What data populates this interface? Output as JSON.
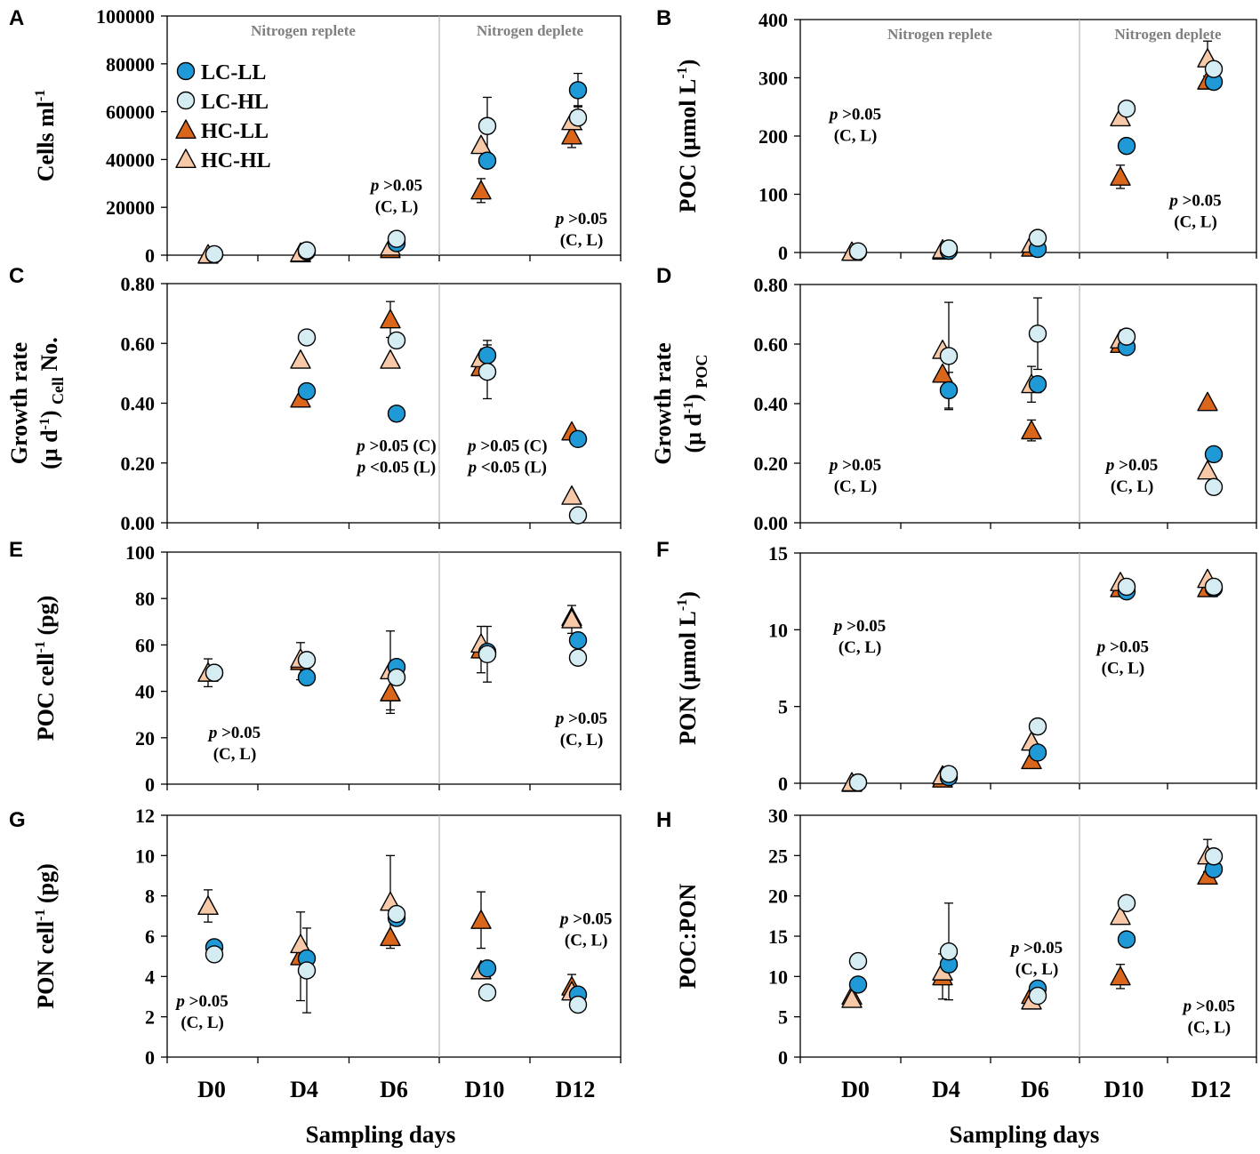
{
  "x_axis": {
    "categories": [
      "D0",
      "D4",
      "D6",
      "D10",
      "D12"
    ],
    "title": "Sampling days"
  },
  "legend": [
    "LC-LL",
    "LC-HL",
    "HC-LL",
    "HC-HL"
  ],
  "series_style": {
    "LC-LL": {
      "shape": "circle",
      "fill": "#1f9ad6"
    },
    "LC-HL": {
      "shape": "circle",
      "fill": "#d6ecf3"
    },
    "HC-LL": {
      "shape": "triangle",
      "fill": "#d9661a"
    },
    "HC-HL": {
      "shape": "triangle",
      "fill": "#f7c9a8"
    }
  },
  "chart_data": [
    {
      "panel": "A",
      "type": "scatter",
      "ylabel_main": "Cells ml",
      "ylabel_sup": "-1",
      "ylim": [
        0,
        100000
      ],
      "yticks": [
        "0",
        "20000",
        "40000",
        "60000",
        "80000",
        "100000"
      ],
      "phase_labels": [
        "Nitrogen replete",
        "Nitrogen deplete"
      ],
      "annotations": [
        {
          "cat": 2,
          "yfrac": 0.27,
          "lines": [
            "p >0.05",
            "(C, L)"
          ]
        },
        {
          "cat": 4,
          "yfrac": 0.13,
          "lines": [
            "p >0.05",
            "(C, L)"
          ]
        }
      ],
      "series": [
        {
          "name": "LC-LL",
          "values": [
            300,
            1500,
            5000,
            39500,
            69000
          ],
          "err": [
            0,
            0,
            0,
            0,
            7000
          ]
        },
        {
          "name": "LC-HL",
          "values": [
            400,
            2000,
            6800,
            54000,
            57500
          ],
          "err": [
            0,
            0,
            0,
            12000,
            5000
          ]
        },
        {
          "name": "HC-LL",
          "values": [
            150,
            700,
            2500,
            27000,
            50000
          ],
          "err": [
            0,
            0,
            0,
            5000,
            5000
          ]
        },
        {
          "name": "HC-HL",
          "values": [
            300,
            1000,
            3500,
            46000,
            56000
          ],
          "err": [
            0,
            0,
            0,
            0,
            0
          ]
        }
      ]
    },
    {
      "panel": "B",
      "type": "scatter",
      "ylabel_main": "POC (µmol L",
      "ylabel_sup": "-1",
      "ylabel_tail": ")",
      "ylim": [
        0,
        400
      ],
      "yticks": [
        "0",
        "100",
        "200",
        "300",
        "400"
      ],
      "phase_labels": [
        "Nitrogen replete",
        "Nitrogen deplete"
      ],
      "annotations": [
        {
          "cat": 0,
          "yfrac": 0.57,
          "lines": [
            "p >0.05",
            "(C, L)"
          ]
        },
        {
          "cat": 3.75,
          "yfrac": 0.2,
          "lines": [
            "p >0.05",
            "(C, L)"
          ]
        }
      ],
      "series": [
        {
          "name": "LC-LL",
          "values": [
            1,
            3,
            6,
            183,
            293
          ],
          "err": [
            0,
            0,
            0,
            0,
            0
          ]
        },
        {
          "name": "LC-HL",
          "values": [
            2,
            7,
            25,
            247,
            315
          ],
          "err": [
            0,
            0,
            0,
            0,
            0
          ]
        },
        {
          "name": "HC-LL",
          "values": [
            1,
            3,
            8,
            130,
            295
          ],
          "err": [
            0,
            0,
            0,
            20,
            0
          ]
        },
        {
          "name": "HC-HL",
          "values": [
            1,
            5,
            15,
            232,
            333
          ],
          "err": [
            0,
            0,
            0,
            0,
            30
          ]
        }
      ]
    },
    {
      "panel": "C",
      "type": "scatter",
      "ylabel_main": "Growth rate",
      "ylabel2_main": "(μ d",
      "ylabel2_sup": "-1",
      "ylabel2_tail": ")",
      "ylabel2_sub": "Cell",
      "ylabel2_after": "No.",
      "ylim": [
        0,
        0.8
      ],
      "yticks": [
        "0.00",
        "0.20",
        "0.40",
        "0.60",
        "0.80"
      ],
      "annotations": [
        {
          "cat": 2,
          "yfrac": 0.3,
          "lines": [
            "p >0.05 (C)",
            "p <0.05 (L)"
          ]
        },
        {
          "cat": 3.2,
          "yfrac": 0.3,
          "lines": [
            "p >0.05 (C)",
            "p <0.05 (L)"
          ]
        }
      ],
      "series": [
        {
          "name": "LC-LL",
          "values": [
            null,
            0.44,
            0.365,
            0.56,
            0.28
          ],
          "err": [
            0,
            0,
            0,
            0.05,
            0
          ]
        },
        {
          "name": "LC-HL",
          "values": [
            null,
            0.62,
            0.61,
            0.505,
            0.025
          ],
          "err": [
            0,
            0,
            0,
            0.09,
            0
          ]
        },
        {
          "name": "HC-LL",
          "values": [
            null,
            0.415,
            0.68,
            0.52,
            0.305
          ],
          "err": [
            0,
            0,
            0.06,
            0,
            0
          ]
        },
        {
          "name": "HC-HL",
          "values": [
            null,
            0.545,
            0.545,
            0.55,
            0.09
          ],
          "err": [
            0,
            0,
            0,
            0,
            0
          ]
        }
      ]
    },
    {
      "panel": "D",
      "type": "scatter",
      "ylabel_main": "Growth rate",
      "ylabel2_main": "(μ d",
      "ylabel2_sup": "-1",
      "ylabel2_tail": ")",
      "ylabel2_sub": "POC",
      "ylabel2_after": "",
      "ylim": [
        0,
        0.8
      ],
      "yticks": [
        "0.00",
        "0.20",
        "0.40",
        "0.60",
        "0.80"
      ],
      "annotations": [
        {
          "cat": 0,
          "yfrac": 0.22,
          "lines": [
            "p >0.05",
            "(C, L)"
          ]
        },
        {
          "cat": 3.05,
          "yfrac": 0.22,
          "lines": [
            "p >0.05",
            "(C, L)"
          ]
        }
      ],
      "series": [
        {
          "name": "LC-LL",
          "values": [
            null,
            0.445,
            0.465,
            0.59,
            0.23
          ],
          "err": [
            0,
            0.06,
            0,
            0,
            0
          ]
        },
        {
          "name": "LC-HL",
          "values": [
            null,
            0.56,
            0.635,
            0.625,
            0.12
          ],
          "err": [
            0,
            0.18,
            0.12,
            0.02,
            0
          ]
        },
        {
          "name": "HC-LL",
          "values": [
            null,
            0.5,
            0.31,
            0.6,
            0.405
          ],
          "err": [
            0,
            0,
            0.035,
            0,
            0
          ]
        },
        {
          "name": "HC-HL",
          "values": [
            null,
            0.58,
            0.465,
            0.615,
            0.175
          ],
          "err": [
            0,
            0,
            0.06,
            0,
            0
          ]
        }
      ]
    },
    {
      "panel": "E",
      "type": "scatter",
      "ylabel_main": "POC cell",
      "ylabel_sup": "-1",
      "ylabel_tail": " (pg)",
      "ylim": [
        0,
        100
      ],
      "yticks": [
        "0",
        "20",
        "40",
        "60",
        "80",
        "100"
      ],
      "annotations": [
        {
          "cat": 0.25,
          "yfrac": 0.2,
          "lines": [
            "p >0.05",
            "(C, L)"
          ]
        },
        {
          "cat": 4,
          "yfrac": 0.26,
          "lines": [
            "p >0.05",
            "(C, L)"
          ]
        }
      ],
      "series": [
        {
          "name": "LC-LL",
          "values": [
            48,
            46,
            50.5,
            57,
            62
          ],
          "err": [
            0,
            0,
            0,
            0,
            0
          ]
        },
        {
          "name": "LC-HL",
          "values": [
            48,
            53.5,
            46,
            56,
            54.5
          ],
          "err": [
            0,
            0,
            0,
            12,
            0
          ]
        },
        {
          "name": "HC-LL",
          "values": [
            48,
            53,
            39.5,
            58,
            72
          ],
          "err": [
            6,
            8,
            9,
            10,
            0
          ]
        },
        {
          "name": "HC-HL",
          "values": [
            48,
            54,
            49,
            60.5,
            71
          ],
          "err": [
            0,
            0,
            17,
            0,
            6
          ]
        }
      ]
    },
    {
      "panel": "F",
      "type": "scatter",
      "ylabel_main": "PON (µmol L",
      "ylabel_sup": "-1",
      "ylabel_tail": ")",
      "ylim": [
        0,
        15
      ],
      "yticks": [
        "0",
        "5",
        "10",
        "15"
      ],
      "annotations": [
        {
          "cat": 0.05,
          "yfrac": 0.66,
          "lines": [
            "p >0.05",
            "(C, L)"
          ]
        },
        {
          "cat": 2.95,
          "yfrac": 0.57,
          "lines": [
            "p >0.05",
            "(C, L)"
          ]
        }
      ],
      "series": [
        {
          "name": "LC-LL",
          "values": [
            0.05,
            0.4,
            2.0,
            12.5,
            12.7
          ],
          "err": [
            0,
            0,
            0,
            0,
            0
          ]
        },
        {
          "name": "LC-HL",
          "values": [
            0.05,
            0.6,
            3.7,
            12.8,
            12.8
          ],
          "err": [
            0,
            0,
            0,
            0,
            0
          ]
        },
        {
          "name": "HC-LL",
          "values": [
            0.02,
            0.3,
            1.5,
            12.7,
            12.7
          ],
          "err": [
            0,
            0,
            0,
            0,
            0
          ]
        },
        {
          "name": "HC-HL",
          "values": [
            0.05,
            0.5,
            2.7,
            13.1,
            13.3
          ],
          "err": [
            0,
            0,
            0,
            0,
            0
          ]
        }
      ]
    },
    {
      "panel": "G",
      "type": "scatter",
      "ylabel_main": "PON cell",
      "ylabel_sup": "-1",
      "ylabel_tail": " (pg)",
      "ylim": [
        0,
        12
      ],
      "yticks": [
        "0",
        "2",
        "4",
        "6",
        "8",
        "10",
        "12"
      ],
      "annotations": [
        {
          "cat": -0.1,
          "yfrac": 0.21,
          "lines": [
            "p >0.05",
            "(C, L)"
          ]
        },
        {
          "cat": 4.05,
          "yfrac": 0.55,
          "lines": [
            "p >0.05",
            "(C, L)"
          ]
        }
      ],
      "series": [
        {
          "name": "LC-LL",
          "values": [
            5.45,
            4.9,
            6.9,
            4.4,
            3.1
          ],
          "err": [
            0,
            0,
            0,
            0,
            0
          ]
        },
        {
          "name": "LC-HL",
          "values": [
            5.1,
            4.3,
            7.1,
            3.2,
            2.6
          ],
          "err": [
            0,
            2.1,
            0,
            0,
            0
          ]
        },
        {
          "name": "HC-LL",
          "values": [
            7.5,
            5.0,
            5.95,
            6.8,
            3.5
          ],
          "err": [
            0.8,
            2.2,
            0,
            1.4,
            0.6
          ]
        },
        {
          "name": "HC-HL",
          "values": [
            7.5,
            5.6,
            7.7,
            4.3,
            3.25
          ],
          "err": [
            0,
            0,
            2.3,
            0,
            0
          ]
        }
      ]
    },
    {
      "panel": "H",
      "type": "scatter",
      "ylabel_main": "POC:PON",
      "ylim": [
        0,
        30
      ],
      "yticks": [
        "0",
        "5",
        "10",
        "15",
        "20",
        "25",
        "30"
      ],
      "annotations": [
        {
          "cat": 2,
          "yfrac": 0.43,
          "lines": [
            "p >0.05",
            "(C, L)"
          ]
        },
        {
          "cat": 3.9,
          "yfrac": 0.19,
          "lines": [
            "p >0.05",
            "(C, L)"
          ]
        }
      ],
      "series": [
        {
          "name": "LC-LL",
          "values": [
            9,
            11.5,
            8.5,
            14.6,
            23.3
          ],
          "err": [
            0,
            0,
            0,
            0,
            0
          ]
        },
        {
          "name": "LC-HL",
          "values": [
            11.9,
            13.1,
            7.6,
            19.1,
            24.9
          ],
          "err": [
            0,
            6,
            0,
            0,
            0
          ]
        },
        {
          "name": "HC-LL",
          "values": [
            7.6,
            10,
            7.7,
            10,
            22.5
          ],
          "err": [
            0,
            2.8,
            0,
            1.5,
            0
          ]
        },
        {
          "name": "HC-HL",
          "values": [
            7.2,
            10.6,
            7,
            17.5,
            25
          ],
          "err": [
            0,
            0,
            0,
            0,
            2
          ]
        }
      ]
    }
  ]
}
